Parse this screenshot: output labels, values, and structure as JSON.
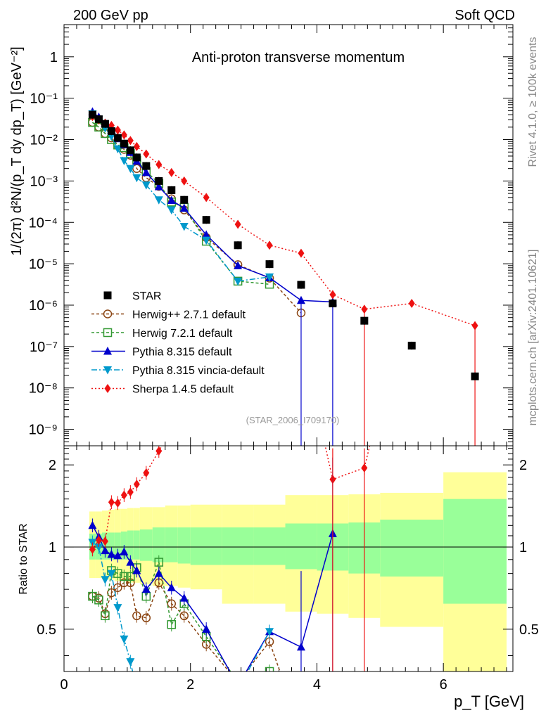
{
  "header": {
    "energy_label": "200 GeV pp",
    "process_label": "Soft QCD"
  },
  "side_labels": {
    "rivet": "Rivet 4.1.0, ≥ 100k events",
    "source": "mcplots.cern.ch [arXiv:2401.10621]"
  },
  "chart_data": {
    "type": "scatter",
    "title": "Anti-proton transverse momentum",
    "watermark": "(STAR_2006_I709170)",
    "xlabel": "p_T [GeV]",
    "ylabel": "1/(2π) d²N/(p_T dy dp_T) [GeV⁻²]",
    "ratio_ylabel": "Ratio to STAR",
    "xlim": [
      0,
      7.1
    ],
    "ylim": [
      4e-10,
      6
    ],
    "ratio_ylim": [
      0.35,
      2.35
    ],
    "x_ticks": [
      "0",
      "2",
      "4",
      "6"
    ],
    "y_ticks": [
      "10⁻⁹",
      "10⁻⁸",
      "10⁻⁷",
      "10⁻⁶",
      "10⁻⁵",
      "10⁻⁴",
      "10⁻³",
      "10⁻²",
      "10⁻¹",
      "1"
    ],
    "ratio_ticks": [
      "0.5",
      "1",
      "2"
    ],
    "legend_position": "center-left",
    "data": {
      "name": "STAR",
      "x": [
        0.45,
        0.55,
        0.65,
        0.75,
        0.85,
        0.95,
        1.05,
        1.15,
        1.3,
        1.5,
        1.7,
        1.9,
        2.25,
        2.75,
        3.25,
        3.75,
        4.25,
        4.75,
        5.5,
        6.5
      ],
      "y": [
        0.04,
        0.031,
        0.024,
        0.016,
        0.011,
        0.008,
        0.0055,
        0.0037,
        0.0023,
        0.001,
        0.0006,
        0.00035,
        0.000115,
        2.8e-05,
        9.8e-06,
        3.1e-06,
        1.1e-06,
        4.2e-07,
        1.05e-07,
        1.9e-08
      ]
    },
    "band_edges": [
      0.4,
      0.5,
      0.6,
      0.7,
      0.8,
      0.9,
      1.0,
      1.1,
      1.2,
      1.4,
      1.6,
      1.8,
      2.0,
      2.5,
      3.0,
      3.5,
      4.0,
      4.5,
      5.0,
      6.0,
      7.0
    ],
    "stat_band": {
      "low": [
        0.9,
        0.9,
        0.9,
        0.9,
        0.9,
        0.9,
        0.9,
        0.9,
        0.89,
        0.88,
        0.88,
        0.87,
        0.86,
        0.86,
        0.86,
        0.83,
        0.82,
        0.8,
        0.78,
        0.62
      ],
      "high": [
        1.12,
        1.12,
        1.13,
        1.13,
        1.13,
        1.14,
        1.15,
        1.15,
        1.16,
        1.18,
        1.18,
        1.18,
        1.18,
        1.18,
        1.18,
        1.22,
        1.22,
        1.23,
        1.26,
        1.5
      ]
    },
    "syst_band": {
      "low": [
        0.77,
        0.77,
        0.76,
        0.76,
        0.75,
        0.75,
        0.74,
        0.74,
        0.73,
        0.72,
        0.72,
        0.71,
        0.7,
        0.62,
        0.62,
        0.58,
        0.57,
        0.55,
        0.51,
        0.35
      ],
      "high": [
        1.35,
        1.35,
        1.36,
        1.37,
        1.38,
        1.38,
        1.39,
        1.39,
        1.4,
        1.4,
        1.42,
        1.42,
        1.43,
        1.43,
        1.43,
        1.55,
        1.55,
        1.56,
        1.58,
        1.88
      ]
    },
    "series": [
      {
        "name": "Herwig++ 2.7.1 default",
        "color": "#8b4513",
        "dash": "4,3",
        "marker": "open-circle",
        "x": [
          0.45,
          0.55,
          0.65,
          0.75,
          0.85,
          0.95,
          1.05,
          1.15,
          1.3,
          1.5,
          1.7,
          1.9,
          2.25,
          2.75,
          3.25,
          3.75
        ],
        "y": [
          0.026,
          0.02,
          0.014,
          0.011,
          0.0075,
          0.0058,
          0.0042,
          0.002,
          0.0012,
          0.00074,
          0.00037,
          0.0002,
          4.3e-05,
          9.5e-06,
          4.5e-06,
          6.5e-07
        ],
        "ratio": [
          0.66,
          0.65,
          0.57,
          0.68,
          0.71,
          0.74,
          0.74,
          0.56,
          0.55,
          0.74,
          0.62,
          0.56,
          0.44,
          0.32,
          0.45,
          0.21
        ]
      },
      {
        "name": "Herwig 7.2.1 default",
        "color": "#339933",
        "dash": "4,3",
        "marker": "open-square",
        "x": [
          0.45,
          0.55,
          0.65,
          0.75,
          0.85,
          0.95,
          1.05,
          1.15,
          1.3,
          1.5,
          1.7,
          1.9,
          2.25,
          2.75,
          3.25
        ],
        "y": [
          0.026,
          0.02,
          0.014,
          0.01,
          0.0074,
          0.0064,
          0.0046,
          0.0032,
          0.0017,
          0.00088,
          0.00031,
          0.00023,
          3.5e-05,
          3.8e-06,
          3.2e-06
        ],
        "ratio": [
          0.66,
          0.64,
          0.56,
          0.82,
          0.8,
          0.78,
          0.78,
          0.84,
          0.66,
          0.88,
          0.52,
          0.62,
          0.47,
          0.32,
          0.35
        ]
      },
      {
        "name": "Pythia 8.315 default",
        "color": "#0000cc",
        "dash": "",
        "marker": "filled-triangle-up",
        "x": [
          0.45,
          0.55,
          0.65,
          0.75,
          0.85,
          0.95,
          1.05,
          1.15,
          1.3,
          1.5,
          1.7,
          1.9,
          2.25,
          2.75,
          3.25,
          3.75,
          4.25
        ],
        "y": [
          0.047,
          0.035,
          0.025,
          0.017,
          0.0105,
          0.0075,
          0.0049,
          0.003,
          0.0016,
          0.00073,
          0.00034,
          0.00022,
          5e-05,
          9e-06,
          4.6e-06,
          1.3e-06,
          1.2e-06
        ],
        "ratio": [
          1.2,
          1.09,
          0.97,
          0.94,
          0.93,
          0.96,
          0.88,
          0.82,
          0.7,
          0.8,
          0.71,
          0.65,
          0.5,
          0.31,
          0.49,
          0.43,
          1.12
        ]
      },
      {
        "name": "Pythia 8.315 vincia-default",
        "color": "#0099cc",
        "dash": "8,3,2,3",
        "marker": "filled-triangle-down",
        "x": [
          0.45,
          0.55,
          0.65,
          0.75,
          0.85,
          0.95,
          1.05,
          1.15,
          1.3,
          1.5,
          1.7,
          1.9,
          2.25,
          2.75,
          3.25
        ],
        "y": [
          0.042,
          0.031,
          0.019,
          0.012,
          0.006,
          0.0031,
          0.002,
          0.0012,
          0.0008,
          0.00035,
          0.0002,
          8e-05,
          3.7e-05,
          3.8e-06,
          4.8e-06
        ],
        "ratio": [
          1.04,
          1.0,
          0.76,
          0.8,
          0.6,
          0.46,
          0.38,
          0.3,
          0.3,
          0.3,
          0.3,
          0.3,
          0.3,
          0.3,
          0.49
        ]
      },
      {
        "name": "Sherpa 1.4.5 default",
        "color": "#ee1111",
        "dash": "2,3",
        "marker": "filled-diamond",
        "x": [
          0.45,
          0.55,
          0.65,
          0.75,
          0.85,
          0.95,
          1.05,
          1.15,
          1.3,
          1.5,
          1.7,
          1.9,
          2.25,
          2.75,
          3.25,
          3.75,
          4.25,
          4.75,
          5.5,
          6.5
        ],
        "y": [
          0.036,
          0.03,
          0.025,
          0.022,
          0.017,
          0.013,
          0.0095,
          0.0068,
          0.0045,
          0.0025,
          0.0016,
          0.001,
          0.0004,
          9e-05,
          2.8e-05,
          1.8e-05,
          1.8e-06,
          8e-07,
          1.1e-06,
          3.2e-07
        ],
        "ratio": [
          0.98,
          1.06,
          1.05,
          1.46,
          1.45,
          1.55,
          1.59,
          1.7,
          1.87,
          2.25,
          2.7,
          2.95,
          3.5,
          3.2,
          2.86,
          5.8,
          1.77,
          1.95,
          10.0,
          16.8
        ]
      }
    ]
  }
}
